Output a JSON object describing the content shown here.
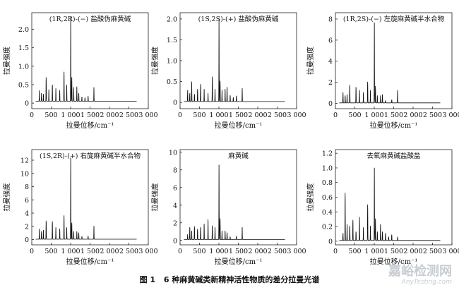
{
  "figure": {
    "caption_label": "图 1",
    "caption_text": "6 种麻黄碱类新精神活性物质的差分拉曼光谱",
    "watermark_cn": "嘉峪检测网",
    "watermark_en": "AnyTesting.com"
  },
  "chart_data": [
    {
      "type": "line",
      "title": "(1R,2R)-(−) 盐酸伪麻黄碱",
      "xlabel": "拉曼位移/cm⁻¹",
      "ylabel": "拉曼强度",
      "xlim": [
        0,
        3000
      ],
      "ylim": [
        -0.15,
        2.45
      ],
      "xticks": [
        0,
        500,
        1000,
        1500,
        2000,
        2500,
        3000
      ],
      "xtick_labels": [
        "0",
        "500",
        "1 000",
        "1 500",
        "2 000",
        "2 500",
        "3 000"
      ],
      "yticks": [
        0,
        0.5,
        1.0,
        1.5,
        2.0
      ],
      "ytick_labels": [
        "0",
        "0.5",
        "1.0",
        "1.5",
        "2.0"
      ],
      "color": "#111111",
      "baseline": 0.05,
      "x_start": 100,
      "x_end": 2700,
      "peaks": [
        [
          195,
          0.3
        ],
        [
          250,
          0.22
        ],
        [
          300,
          0.2
        ],
        [
          370,
          0.65
        ],
        [
          440,
          0.32
        ],
        [
          530,
          0.45
        ],
        [
          620,
          0.35
        ],
        [
          720,
          0.3
        ],
        [
          830,
          0.8
        ],
        [
          900,
          0.45
        ],
        [
          1003,
          2.38
        ],
        [
          1030,
          0.65
        ],
        [
          1080,
          0.38
        ],
        [
          1160,
          0.4
        ],
        [
          1210,
          0.22
        ],
        [
          1290,
          0.12
        ],
        [
          1370,
          0.1
        ],
        [
          1450,
          0.14
        ],
        [
          1600,
          0.38
        ]
      ]
    },
    {
      "type": "line",
      "title": "(1S,2S)-(+) 盐酸伪麻黄碱",
      "xlabel": "拉曼位移/cm⁻¹",
      "ylabel": "拉曼强度",
      "xlim": [
        0,
        3000
      ],
      "ylim": [
        -0.15,
        2.15
      ],
      "xticks": [
        0,
        500,
        1000,
        1500,
        2000,
        2500,
        3000
      ],
      "xtick_labels": [
        "0",
        "500",
        "1 000",
        "1 500",
        "2 000",
        "2 500",
        "3 000"
      ],
      "yticks": [
        0,
        0.5,
        1.0,
        1.5,
        2.0
      ],
      "ytick_labels": [
        "0",
        "0.5",
        "1.0",
        "1.5",
        "2.0"
      ],
      "color": "#111111",
      "baseline": 0.02,
      "x_start": 100,
      "x_end": 2700,
      "peaks": [
        [
          195,
          0.28
        ],
        [
          250,
          0.2
        ],
        [
          300,
          0.48
        ],
        [
          370,
          0.18
        ],
        [
          450,
          0.3
        ],
        [
          530,
          0.42
        ],
        [
          620,
          0.3
        ],
        [
          720,
          0.2
        ],
        [
          830,
          0.6
        ],
        [
          900,
          0.3
        ],
        [
          1003,
          2.05
        ],
        [
          1030,
          0.5
        ],
        [
          1080,
          0.28
        ],
        [
          1160,
          0.3
        ],
        [
          1210,
          0.35
        ],
        [
          1290,
          0.15
        ],
        [
          1370,
          0.1
        ],
        [
          1450,
          0.14
        ],
        [
          1600,
          0.32
        ]
      ]
    },
    {
      "type": "line",
      "title": "(1R,2S)-(−) 左旋麻黄碱半水合物",
      "xlabel": "拉曼位移/cm⁻¹",
      "ylabel": "拉曼强度",
      "xlim": [
        0,
        3000
      ],
      "ylim": [
        -0.5,
        8.6
      ],
      "xticks": [
        0,
        500,
        1000,
        1500,
        2000,
        2500,
        3000
      ],
      "xtick_labels": [
        "0",
        "500",
        "1 000",
        "1 500",
        "2 000",
        "2 500",
        "3 000"
      ],
      "yticks": [
        0,
        2,
        4,
        6,
        8
      ],
      "ytick_labels": [
        "0",
        "2",
        "4",
        "6",
        "8"
      ],
      "color": "#111111",
      "baseline": 0.05,
      "x_start": 100,
      "x_end": 2700,
      "peaks": [
        [
          195,
          1.0
        ],
        [
          250,
          0.7
        ],
        [
          300,
          0.8
        ],
        [
          370,
          1.7
        ],
        [
          530,
          1.5
        ],
        [
          620,
          1.2
        ],
        [
          720,
          1.0
        ],
        [
          830,
          2.0
        ],
        [
          900,
          1.2
        ],
        [
          1003,
          7.9
        ],
        [
          1030,
          1.6
        ],
        [
          1080,
          0.7
        ],
        [
          1160,
          0.7
        ],
        [
          1210,
          0.8
        ],
        [
          1290,
          0.2
        ],
        [
          1450,
          0.3
        ],
        [
          1600,
          1.2
        ]
      ]
    },
    {
      "type": "line",
      "title": "(1S,2R)-(+) 右旋麻黄碱半水合物",
      "xlabel": "拉曼位移/cm⁻¹",
      "ylabel": "拉曼强度",
      "xlim": [
        0,
        3000
      ],
      "ylim": [
        -0.8,
        13.6
      ],
      "xticks": [
        0,
        500,
        1000,
        1500,
        2000,
        2500,
        3000
      ],
      "xtick_labels": [
        "0",
        "500",
        "1 000",
        "1 500",
        "2 000",
        "2 500",
        "3 000"
      ],
      "yticks": [
        0,
        2,
        4,
        6,
        8,
        10,
        12
      ],
      "ytick_labels": [
        "0",
        "2",
        "4",
        "6",
        "8",
        "10",
        "12"
      ],
      "color": "#111111",
      "baseline": 0.05,
      "x_start": 100,
      "x_end": 2700,
      "peaks": [
        [
          195,
          1.6
        ],
        [
          250,
          1.2
        ],
        [
          300,
          1.4
        ],
        [
          370,
          2.8
        ],
        [
          530,
          2.7
        ],
        [
          620,
          1.8
        ],
        [
          720,
          1.6
        ],
        [
          830,
          3.6
        ],
        [
          900,
          1.8
        ],
        [
          1003,
          12.8
        ],
        [
          1030,
          2.5
        ],
        [
          1080,
          1.2
        ],
        [
          1160,
          1.2
        ],
        [
          1210,
          1.0
        ],
        [
          1290,
          0.4
        ],
        [
          1450,
          0.5
        ],
        [
          1600,
          2.0
        ]
      ]
    },
    {
      "type": "line",
      "title": "麻黄碱",
      "xlabel": "拉曼位移/cm⁻¹",
      "ylabel": "拉曼强度",
      "xlim": [
        0,
        3000
      ],
      "ylim": [
        -0.5,
        10.3
      ],
      "xticks": [
        0,
        500,
        1000,
        1500,
        2000,
        2500,
        3000
      ],
      "xtick_labels": [
        "0",
        "500",
        "1 000",
        "1 500",
        "2 000",
        "2 500",
        "3 000"
      ],
      "yticks": [
        0,
        2,
        4,
        6,
        8,
        10
      ],
      "ytick_labels": [
        "0",
        "2",
        "4",
        "6",
        "8",
        "10"
      ],
      "color": "#111111",
      "baseline": 0.1,
      "x_start": 100,
      "x_end": 2700,
      "peaks": [
        [
          195,
          0.6
        ],
        [
          250,
          1.4
        ],
        [
          300,
          1.0
        ],
        [
          370,
          1.5
        ],
        [
          450,
          1.2
        ],
        [
          530,
          1.4
        ],
        [
          620,
          1.8
        ],
        [
          720,
          2.3
        ],
        [
          830,
          1.6
        ],
        [
          900,
          1.4
        ],
        [
          1003,
          8.8
        ],
        [
          1030,
          2.4
        ],
        [
          1080,
          1.0
        ],
        [
          1160,
          1.0
        ],
        [
          1210,
          0.8
        ],
        [
          1290,
          0.3
        ],
        [
          1450,
          0.4
        ],
        [
          1600,
          1.4
        ]
      ]
    },
    {
      "type": "line",
      "title": "去氧麻黄碱盐酸盐",
      "xlabel": "拉曼位移/cm⁻¹",
      "ylabel": "拉曼强度",
      "xlim": [
        0,
        3000
      ],
      "ylim": [
        -0.05,
        1.25
      ],
      "xticks": [
        0,
        500,
        1000,
        1500,
        2000,
        2500,
        3000
      ],
      "xtick_labels": [
        "0",
        "500",
        "1 000",
        "1 500",
        "2 000",
        "2 500",
        "3 000"
      ],
      "yticks": [
        0,
        0.2,
        0.4,
        0.6,
        0.8,
        1.0,
        1.2
      ],
      "ytick_labels": [
        "0",
        "0.2",
        "0.4",
        "0.6",
        "0.8",
        "1.0",
        "1.2"
      ],
      "color": "#111111",
      "baseline": 0.01,
      "x_start": 100,
      "x_end": 2700,
      "peaks": [
        [
          195,
          0.1
        ],
        [
          250,
          0.65
        ],
        [
          300,
          0.22
        ],
        [
          370,
          0.2
        ],
        [
          450,
          0.28
        ],
        [
          530,
          0.12
        ],
        [
          620,
          0.32
        ],
        [
          720,
          0.18
        ],
        [
          830,
          0.49
        ],
        [
          900,
          0.2
        ],
        [
          1003,
          1.03
        ],
        [
          1030,
          0.3
        ],
        [
          1080,
          0.12
        ],
        [
          1160,
          0.22
        ],
        [
          1210,
          0.12
        ],
        [
          1290,
          0.1
        ],
        [
          1370,
          0.05
        ],
        [
          1450,
          0.08
        ],
        [
          1600,
          0.05
        ]
      ]
    }
  ]
}
